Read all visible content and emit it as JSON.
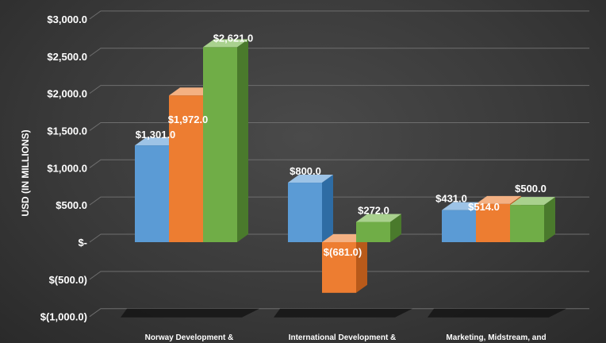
{
  "chart_data": {
    "type": "bar",
    "ylabel": "USD (IN MILLIONS)",
    "categories": [
      "Norway Development &",
      "International Development &",
      "Marketing, Midstream, and"
    ],
    "series": [
      {
        "values": [
          1301.0,
          800.0,
          431.0
        ],
        "labels": [
          "$1,301.0",
          "$800.0",
          "$431.0"
        ]
      },
      {
        "values": [
          1972.0,
          -681.0,
          514.0
        ],
        "labels": [
          "$1,972.0",
          "$(681.0)",
          "$514.0"
        ]
      },
      {
        "values": [
          2621.0,
          272.0,
          500.0
        ],
        "labels": [
          "$2,621.0",
          "$272.0",
          "$500.0"
        ]
      }
    ],
    "y_ticks": [
      {
        "value": 3000,
        "label": "$3,000.0"
      },
      {
        "value": 2500,
        "label": "$2,500.0"
      },
      {
        "value": 2000,
        "label": "$2,000.0"
      },
      {
        "value": 1500,
        "label": "$1,500.0"
      },
      {
        "value": 1000,
        "label": "$1,000.0"
      },
      {
        "value": 500,
        "label": "$500.0"
      },
      {
        "value": 0,
        "label": "$-"
      },
      {
        "value": -500,
        "label": "$(500.0)"
      },
      {
        "value": -1000,
        "label": "$(1,000.0)"
      }
    ],
    "ylim": [
      -1000,
      3000
    ],
    "grid": true,
    "legend": "none",
    "colors": {
      "series": [
        "#5b9bd5",
        "#ed7d31",
        "#70ad47"
      ],
      "series_top": [
        "#9dc3e6",
        "#f4b183",
        "#a9d18e"
      ],
      "series_side": [
        "#2e6ca4",
        "#b85a1a",
        "#4a7a2c"
      ],
      "grid": "#6e6e6e",
      "text": "#ffffff"
    }
  }
}
